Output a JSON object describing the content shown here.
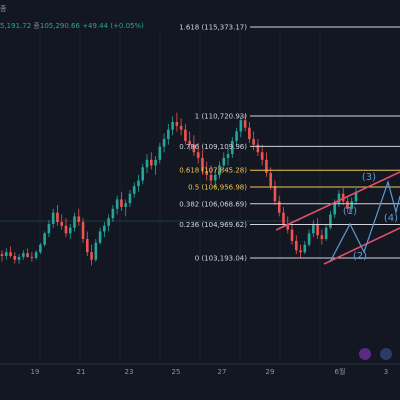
{
  "header": {
    "symbol_tag": "종",
    "ohlc_left": "5,191.72",
    "close_label": "종",
    "close_value": "105,290.66",
    "change": "+49.44 (+0.05%)"
  },
  "colors": {
    "background": "#131722",
    "candle_up": "#26a69a",
    "candle_down": "#ef5350",
    "fib_line": "#d1d4dc",
    "fib_gold": "#f0c84a",
    "channel": "#e0506a",
    "wave": "#5b9bd5"
  },
  "icons": {
    "flash": "lightning-icon",
    "flag": "flag-icon"
  },
  "chart_data": {
    "type": "candlestick",
    "x_tick_labels": [
      "19",
      "21",
      "23",
      "25",
      "27",
      "29",
      "6월",
      "3"
    ],
    "fibonacci_levels": [
      {
        "label": "1.618 (115,373.17)",
        "ratio": 1.618,
        "price": 115373.17
      },
      {
        "label": "1 (110,720.93)",
        "ratio": 1,
        "price": 110720.93
      },
      {
        "label": "0.786 (109,109.96)",
        "ratio": 0.786,
        "price": 109109.96
      },
      {
        "label": "0.618 (107,845.28)",
        "ratio": 0.618,
        "price": 107845.28
      },
      {
        "label": "0.5 (106,956.98)",
        "ratio": 0.5,
        "price": 106956.98
      },
      {
        "label": "0.382 (106,068.69)",
        "ratio": 0.382,
        "price": 106068.69
      },
      {
        "label": "0.236 (104,969.62)",
        "ratio": 0.236,
        "price": 104969.62
      },
      {
        "label": "0 (103,193.04)",
        "ratio": 0,
        "price": 103193.04
      }
    ],
    "wave_labels": [
      "(1)",
      "(2)",
      "(3)",
      "(4)"
    ],
    "candles": [
      [
        103400,
        103600,
        103000,
        103300
      ],
      [
        103300,
        103700,
        103100,
        103500
      ],
      [
        103500,
        103800,
        103200,
        103300
      ],
      [
        103300,
        103500,
        102900,
        103100
      ],
      [
        103100,
        103400,
        102900,
        103250
      ],
      [
        103250,
        103600,
        103100,
        103450
      ],
      [
        103450,
        103700,
        103200,
        103250
      ],
      [
        103250,
        103500,
        103000,
        103200
      ],
      [
        103200,
        103600,
        103100,
        103500
      ],
      [
        103500,
        104000,
        103400,
        103900
      ],
      [
        103900,
        104600,
        103800,
        104500
      ],
      [
        104500,
        105200,
        104300,
        105000
      ],
      [
        105000,
        105800,
        104800,
        105600
      ],
      [
        105600,
        106000,
        104900,
        105100
      ],
      [
        105100,
        105500,
        104700,
        104900
      ],
      [
        104900,
        105300,
        104300,
        104500
      ],
      [
        104500,
        105000,
        104200,
        104800
      ],
      [
        104800,
        105600,
        104600,
        105400
      ],
      [
        105400,
        105800,
        104900,
        105100
      ],
      [
        105100,
        105300,
        104000,
        104200
      ],
      [
        104200,
        104600,
        103300,
        103500
      ],
      [
        103500,
        103900,
        102800,
        103100
      ],
      [
        103100,
        104200,
        103000,
        104000
      ],
      [
        104000,
        104800,
        103900,
        104600
      ],
      [
        104600,
        105100,
        104300,
        104900
      ],
      [
        104900,
        105500,
        104600,
        105300
      ],
      [
        105300,
        106000,
        105100,
        105800
      ],
      [
        105800,
        106500,
        105500,
        106300
      ],
      [
        106300,
        106700,
        105700,
        105900
      ],
      [
        105900,
        106300,
        105400,
        106100
      ],
      [
        106100,
        106800,
        105900,
        106600
      ],
      [
        106600,
        107200,
        106400,
        107000
      ],
      [
        107000,
        107600,
        106700,
        107300
      ],
      [
        107300,
        108200,
        107100,
        108000
      ],
      [
        108000,
        108700,
        107700,
        108400
      ],
      [
        108400,
        108800,
        107900,
        108100
      ],
      [
        108100,
        108600,
        107600,
        108400
      ],
      [
        108400,
        109300,
        108200,
        109100
      ],
      [
        109100,
        109800,
        108800,
        109500
      ],
      [
        109500,
        110300,
        109200,
        110000
      ],
      [
        110000,
        110700,
        109700,
        110400
      ],
      [
        110400,
        110900,
        109900,
        110200
      ],
      [
        110200,
        110600,
        109700,
        110000
      ],
      [
        110000,
        110300,
        109200,
        109400
      ],
      [
        109400,
        109900,
        108900,
        109200
      ],
      [
        109200,
        109700,
        108600,
        108800
      ],
      [
        108800,
        109300,
        108200,
        108500
      ],
      [
        108500,
        108900,
        107600,
        107800
      ],
      [
        107800,
        108300,
        107300,
        107600
      ],
      [
        107600,
        108100,
        107100,
        107300
      ],
      [
        107300,
        107900,
        106900,
        107600
      ],
      [
        107600,
        108300,
        107400,
        108100
      ],
      [
        108100,
        108800,
        107900,
        108500
      ],
      [
        108500,
        109000,
        108100,
        108700
      ],
      [
        108700,
        109600,
        108500,
        109400
      ],
      [
        109400,
        110100,
        109200,
        109900
      ],
      [
        109900,
        110720,
        109600,
        110500
      ],
      [
        110500,
        110800,
        109900,
        110100
      ],
      [
        110100,
        110400,
        109300,
        109500
      ],
      [
        109500,
        109900,
        108900,
        109200
      ],
      [
        109200,
        109500,
        108600,
        108800
      ],
      [
        108800,
        109200,
        108100,
        108400
      ],
      [
        108400,
        108800,
        107500,
        107700
      ],
      [
        107700,
        108000,
        106800,
        107000
      ],
      [
        107000,
        107300,
        106000,
        106200
      ],
      [
        106200,
        106500,
        105400,
        105600
      ],
      [
        105600,
        105900,
        104800,
        105000
      ],
      [
        105000,
        105400,
        104500,
        104700
      ],
      [
        104700,
        105000,
        103900,
        104100
      ],
      [
        104100,
        104400,
        103400,
        103600
      ],
      [
        103600,
        103900,
        103193,
        103500
      ],
      [
        103500,
        104100,
        103400,
        103900
      ],
      [
        103900,
        104700,
        103800,
        104500
      ],
      [
        104500,
        105200,
        104300,
        105000
      ],
      [
        105000,
        105300,
        104200,
        104400
      ],
      [
        104400,
        104700,
        103900,
        104200
      ],
      [
        104200,
        105000,
        104100,
        104800
      ],
      [
        104800,
        105700,
        104700,
        105500
      ],
      [
        105500,
        106300,
        105300,
        106100
      ],
      [
        106100,
        106800,
        105900,
        106600
      ],
      [
        106600,
        106900,
        106000,
        106200
      ],
      [
        106200,
        106500,
        105600,
        105800
      ],
      [
        105800,
        106400,
        105600,
        106200
      ],
      [
        106200,
        106900,
        106000,
        106700
      ]
    ]
  }
}
